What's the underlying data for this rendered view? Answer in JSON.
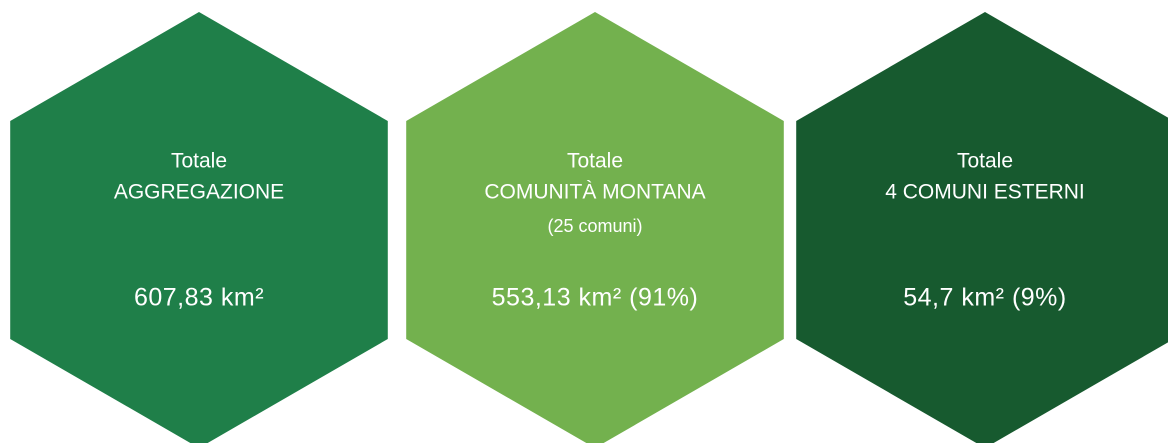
{
  "hexagons": [
    {
      "lines": [
        "Totale",
        "AGGREGAZIONE"
      ],
      "value": "607,83 km²",
      "color": "#1f7f49"
    },
    {
      "lines": [
        "Totale",
        "COMUNITÀ MONTANA"
      ],
      "note": "(25 comuni)",
      "value": "553,13 km² (91%)",
      "color": "#73b14e"
    },
    {
      "lines": [
        "Totale",
        "4 COMUNI ESTERNI"
      ],
      "value": "54,7 km² (9%)",
      "color": "#175a2f"
    }
  ]
}
